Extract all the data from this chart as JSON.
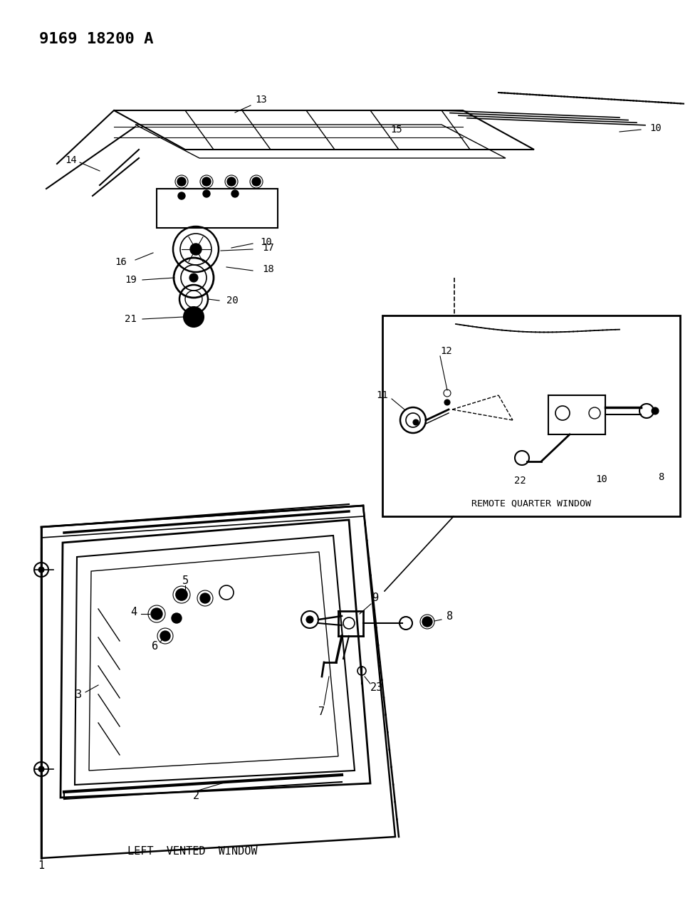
{
  "title": "9169 18200 A",
  "background_color": "#ffffff",
  "line_color": "#000000",
  "fig_width": 9.83,
  "fig_height": 12.75,
  "dpi": 100,
  "labels": {
    "left_vented_window": "LEFT  VENTED  WINDOW",
    "remote_quarter_window": "REMOTE QUARTER WINDOW"
  },
  "part_numbers": [
    "1",
    "2",
    "3",
    "4",
    "5",
    "6",
    "7",
    "8",
    "9",
    "10",
    "11",
    "12",
    "13",
    "14",
    "15",
    "16",
    "17",
    "18",
    "19",
    "20",
    "21",
    "22",
    "23"
  ]
}
